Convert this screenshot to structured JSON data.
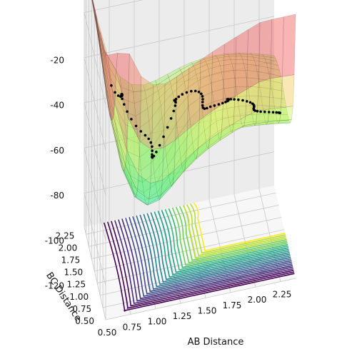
{
  "chart_data": {
    "type": "surface3d",
    "title": "",
    "xlabel": "AB Distance",
    "ylabel": "BC Distance",
    "zlabel": "",
    "x_ticks": [
      "0.50",
      "0.75",
      "1.00",
      "1.25",
      "1.50",
      "1.75",
      "2.00",
      "2.25"
    ],
    "y_ticks": [
      "0.50",
      "0.75",
      "1.00",
      "1.25",
      "1.50",
      "1.75",
      "2.00",
      "2.25"
    ],
    "z_ticks": [
      "-20",
      "-40",
      "-60",
      "-80",
      "-100",
      "-120"
    ],
    "xlim": [
      0.5,
      2.4
    ],
    "ylim": [
      0.5,
      2.4
    ],
    "zlim": [
      -135,
      -18
    ],
    "grid": true,
    "colormap": "jet (surface, semi-transparent) / viridis (floor contours)",
    "trajectory_color": "#000000"
  }
}
